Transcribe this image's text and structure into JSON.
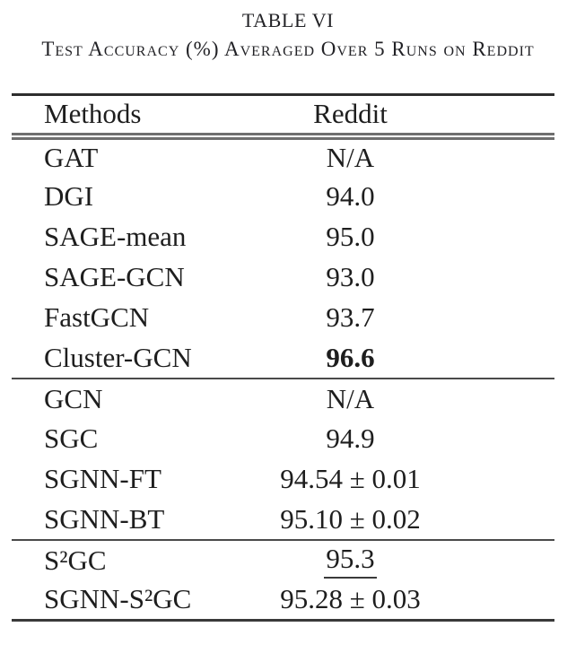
{
  "table": {
    "title": "TABLE VI",
    "caption": "Test Accuracy (%) Averaged Over 5 Runs on Reddit",
    "columns": [
      "Methods",
      "Reddit"
    ],
    "sections": [
      {
        "rows": [
          {
            "method": "GAT",
            "value": "N/A"
          },
          {
            "method": "DGI",
            "value": "94.0"
          },
          {
            "method": "SAGE-mean",
            "value": "95.0"
          },
          {
            "method": "SAGE-GCN",
            "value": "93.0"
          },
          {
            "method": "FastGCN",
            "value": "93.7"
          },
          {
            "method": "Cluster-GCN",
            "value": "96.6",
            "bold": true
          }
        ]
      },
      {
        "rows": [
          {
            "method": "GCN",
            "value": "N/A"
          },
          {
            "method": "SGC",
            "value": "94.9"
          },
          {
            "method": "SGNN-FT",
            "value": "94.54 ± 0.01"
          },
          {
            "method": "SGNN-BT",
            "value": "95.10 ± 0.02"
          }
        ]
      },
      {
        "rows": [
          {
            "method": "S²GC",
            "value": "95.3",
            "underline": true
          },
          {
            "method": "SGNN-S²GC",
            "value": "95.28 ± 0.03"
          }
        ]
      }
    ],
    "colors": {
      "text": "#1e1e1e",
      "rule_heavy": "#2e2e2e",
      "rule_light": "#4a4a4a",
      "rule_double": "#6e6e6e",
      "background": "#ffffff"
    }
  }
}
